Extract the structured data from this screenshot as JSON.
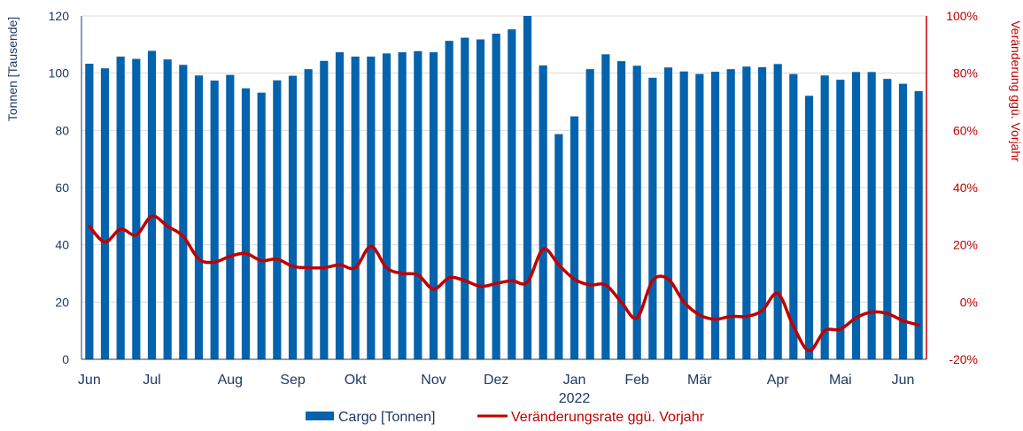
{
  "chart_data": {
    "type": "bar+line",
    "title": "",
    "ylabel_left": "Tonnen [Tausende]",
    "ylabel_right": "Veränderung ggü. Vorjahr",
    "ylim_left": [
      0,
      120
    ],
    "ylim_right": [
      -20,
      100
    ],
    "yticks_left": [
      "0",
      "20",
      "40",
      "60",
      "80",
      "100",
      "120"
    ],
    "yticks_right": [
      "-20%",
      "0%",
      "20%",
      "40%",
      "60%",
      "80%",
      "100%"
    ],
    "x_month_labels": [
      {
        "label": "Jun",
        "index": 0
      },
      {
        "label": "Jul",
        "index": 4
      },
      {
        "label": "Aug",
        "index": 9
      },
      {
        "label": "Sep",
        "index": 13
      },
      {
        "label": "Okt",
        "index": 17
      },
      {
        "label": "Nov",
        "index": 22
      },
      {
        "label": "Dez",
        "index": 26
      },
      {
        "label": "Jan",
        "index": 31
      },
      {
        "label": "Feb",
        "index": 35
      },
      {
        "label": "Mär",
        "index": 39
      },
      {
        "label": "Apr",
        "index": 44
      },
      {
        "label": "Mai",
        "index": 48
      },
      {
        "label": "Jun",
        "index": 52
      }
    ],
    "year_label": {
      "label": "2022",
      "index": 31
    },
    "series": [
      {
        "name": "Cargo [Tonnen]",
        "kind": "bar",
        "color": "#0563ad",
        "axis": "left",
        "values": [
          103.3,
          101.7,
          105.8,
          105.0,
          107.8,
          104.8,
          102.9,
          99.2,
          97.4,
          99.4,
          94.7,
          93.2,
          97.5,
          99.1,
          101.4,
          104.3,
          107.3,
          105.8,
          105.8,
          106.9,
          107.3,
          107.7,
          107.3,
          111.3,
          112.4,
          111.8,
          113.8,
          115.3,
          120.0,
          102.7,
          78.7,
          84.9,
          101.4,
          106.6,
          104.2,
          102.6,
          98.4,
          102.0,
          100.6,
          99.7,
          100.5,
          101.4,
          102.3,
          102.1,
          103.2,
          99.7,
          92.1,
          99.2,
          97.7,
          100.4,
          100.4,
          98.0,
          96.3,
          93.7
        ]
      },
      {
        "name": "Veränderungsrate ggü. Vorjahr",
        "kind": "line",
        "color": "#c00000",
        "axis": "right",
        "values": [
          26.5,
          21.0,
          25.5,
          23.5,
          30.0,
          26.5,
          23.0,
          15.0,
          14.0,
          16.0,
          17.0,
          14.5,
          15.0,
          12.5,
          12.0,
          12.0,
          13.0,
          12.0,
          19.5,
          12.0,
          10.0,
          9.5,
          4.5,
          8.5,
          7.5,
          5.5,
          6.5,
          7.5,
          7.0,
          18.5,
          13.0,
          8.0,
          6.0,
          6.0,
          0.0,
          -5.5,
          7.5,
          8.0,
          0.0,
          -4.5,
          -6.0,
          -5.0,
          -5.0,
          -3.0,
          3.0,
          -8.5,
          -17.0,
          -10.0,
          -9.5,
          -5.5,
          -3.5,
          -4.0,
          -6.5,
          -8.0
        ]
      }
    ],
    "legend": {
      "position": "bottom",
      "items": [
        "Cargo [Tonnen]",
        "Veränderungsrate ggü. Vorjahr"
      ]
    }
  }
}
